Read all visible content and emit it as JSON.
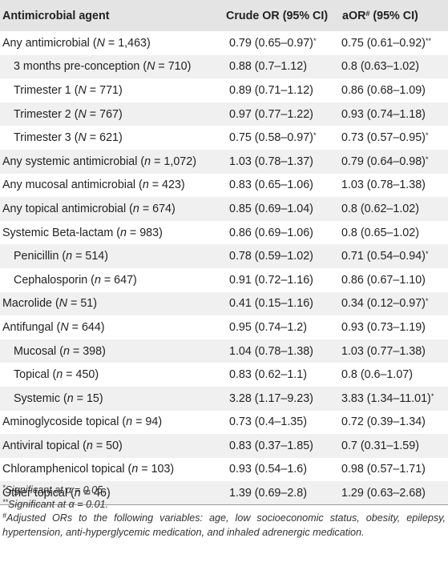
{
  "header": {
    "agent_col": "Antimicrobial agent",
    "crude_col": "Crude OR (95% CI)",
    "adj_col_main": "aOR",
    "adj_col_sup": "#",
    "adj_col_tail": " (95% CI)"
  },
  "rows": [
    {
      "agent": [
        "Any antimicrobial (",
        "N",
        " = 1,463)"
      ],
      "indent": false,
      "crude": "0.79 (0.65–0.97)",
      "crude_sig": "*",
      "adj": "0.75 (0.61–0.92)",
      "adj_sig": "**"
    },
    {
      "agent": [
        "3 months pre-conception (",
        "N",
        " = 710)"
      ],
      "indent": true,
      "crude": "0.88 (0.7–1.12)",
      "crude_sig": "",
      "adj": "0.8 (0.63–1.02)",
      "adj_sig": ""
    },
    {
      "agent": [
        "Trimester 1 (",
        "N",
        " = 771)"
      ],
      "indent": true,
      "crude": "0.89 (0.71–1.12)",
      "crude_sig": "",
      "adj": "0.86 (0.68–1.09)",
      "adj_sig": ""
    },
    {
      "agent": [
        "Trimester 2 (",
        "N",
        " = 767)"
      ],
      "indent": true,
      "crude": "0.97 (0.77–1.22)",
      "crude_sig": "",
      "adj": "0.93 (0.74–1.18)",
      "adj_sig": ""
    },
    {
      "agent": [
        "Trimester 3 (",
        "N",
        " = 621)"
      ],
      "indent": true,
      "crude": "0.75 (0.58–0.97)",
      "crude_sig": "*",
      "adj": "0.73 (0.57–0.95)",
      "adj_sig": "*"
    },
    {
      "agent": [
        "Any systemic antimicrobial (",
        "n",
        " = 1,072)"
      ],
      "indent": false,
      "crude": "1.03 (0.78–1.37)",
      "crude_sig": "",
      "adj": "0.79 (0.64–0.98)",
      "adj_sig": "*"
    },
    {
      "agent": [
        "Any mucosal antimicrobial (",
        "n",
        " = 423)"
      ],
      "indent": false,
      "crude": "0.83 (0.65–1.06)",
      "crude_sig": "",
      "adj": "1.03 (0.78–1.38)",
      "adj_sig": ""
    },
    {
      "agent": [
        "Any topical antimicrobial (",
        "n",
        " = 674)"
      ],
      "indent": false,
      "crude": "0.85 (0.69–1.04)",
      "crude_sig": "",
      "adj": "0.8 (0.62–1.02)",
      "adj_sig": ""
    },
    {
      "agent": [
        "Systemic Beta-lactam (",
        "n",
        " = 983)"
      ],
      "indent": false,
      "crude": "0.86 (0.69–1.06)",
      "crude_sig": "",
      "adj": "0.8 (0.65–1.02)",
      "adj_sig": ""
    },
    {
      "agent": [
        "Penicillin (",
        "n",
        " = 514)"
      ],
      "indent": true,
      "crude": "0.78 (0.59–1.02)",
      "crude_sig": "",
      "adj": "0.71 (0.54–0.94)",
      "adj_sig": "*"
    },
    {
      "agent": [
        "Cephalosporin (",
        "n",
        " = 647)"
      ],
      "indent": true,
      "crude": "0.91 (0.72–1.16)",
      "crude_sig": "",
      "adj": "0.86 (0.67–1.10)",
      "adj_sig": ""
    },
    {
      "agent": [
        "Macrolide (",
        "N",
        " = 51)"
      ],
      "indent": false,
      "crude": "0.41 (0.15–1.16)",
      "crude_sig": "",
      "adj": "0.34 (0.12–0.97)",
      "adj_sig": "*"
    },
    {
      "agent": [
        "Antifungal (",
        "N",
        " = 644)"
      ],
      "indent": false,
      "crude": "0.95 (0.74–1.2)",
      "crude_sig": "",
      "adj": "0.93 (0.73–1.19)",
      "adj_sig": ""
    },
    {
      "agent": [
        "Mucosal (",
        "n",
        " = 398)"
      ],
      "indent": true,
      "crude": "1.04 (0.78–1.38)",
      "crude_sig": "",
      "adj": "1.03 (0.77–1.38)",
      "adj_sig": ""
    },
    {
      "agent": [
        "Topical (",
        "n",
        " = 450)"
      ],
      "indent": true,
      "crude": "0.83 (0.62–1.1)",
      "crude_sig": "",
      "adj": "0.8 (0.6–1.07)",
      "adj_sig": ""
    },
    {
      "agent": [
        "Systemic (",
        "n",
        " = 15)"
      ],
      "indent": true,
      "crude": "3.28 (1.17–9.23)",
      "crude_sig": "",
      "adj": "3.83 (1.34–11.01)",
      "adj_sig": "*"
    },
    {
      "agent": [
        "Aminoglycoside topical (",
        "n",
        " = 94)"
      ],
      "indent": false,
      "crude": "0.73 (0.4–1.35)",
      "crude_sig": "",
      "adj": "0.72 (0.39–1.34)",
      "adj_sig": ""
    },
    {
      "agent": [
        "Antiviral topical (",
        "n",
        " = 50)"
      ],
      "indent": false,
      "crude": "0.83 (0.37–1.85)",
      "crude_sig": "",
      "adj": "0.7 (0.31–1.59)",
      "adj_sig": ""
    },
    {
      "agent": [
        "Chloramphenicol topical (",
        "n",
        " = 103)"
      ],
      "indent": false,
      "crude": "0.93 (0.54–1.6)",
      "crude_sig": "",
      "adj": "0.98 (0.57–1.71)",
      "adj_sig": ""
    },
    {
      "agent": [
        "Other topical (",
        "n",
        " = 46)"
      ],
      "indent": false,
      "crude": "1.39 (0.69–2.8)",
      "crude_sig": "",
      "adj": "1.29 (0.63–2.68)",
      "adj_sig": ""
    }
  ],
  "footnotes": [
    {
      "mark": "*",
      "text": "Significant at α = 0.05."
    },
    {
      "mark": "**",
      "text": "Significant at α = 0.01."
    },
    {
      "mark": "#",
      "text": "Adjusted ORs to the following variables: age, low socioeconomic status, obesity, epilepsy, hypertension, anti-hyperglycemic medication, and inhaled adrenergic medication."
    }
  ],
  "colors": {
    "header_bg": "#e4e4e4",
    "stripe_bg": "#f0f0f0",
    "text": "#222222"
  }
}
